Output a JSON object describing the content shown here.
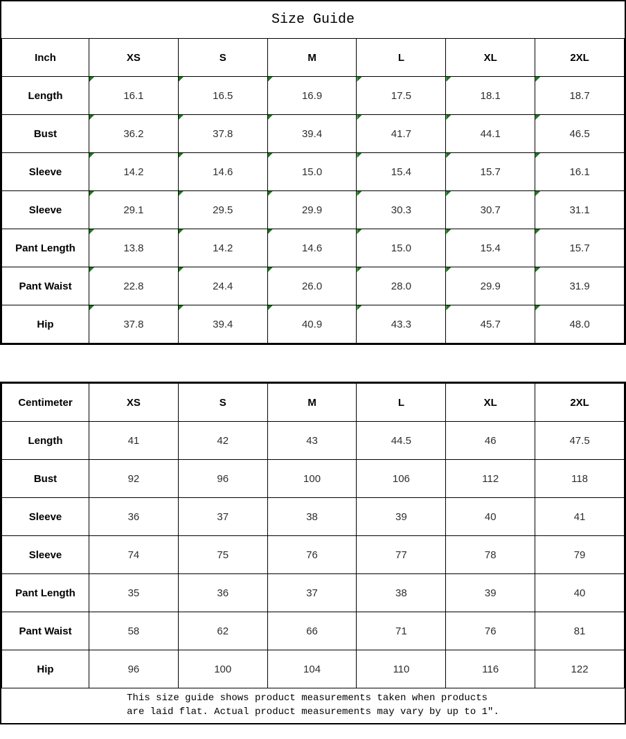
{
  "title": "Size Guide",
  "colors": {
    "border": "#000000",
    "marker_green": "#187a18",
    "value_text": "#2e2e2e"
  },
  "tables": [
    {
      "unit_label": "Inch",
      "sizes": [
        "XS",
        "S",
        "M",
        "L",
        "XL",
        "2XL"
      ],
      "has_cell_markers": true,
      "rows": [
        {
          "label": "Length",
          "values": [
            "16.1",
            "16.5",
            "16.9",
            "17.5",
            "18.1",
            "18.7"
          ]
        },
        {
          "label": "Bust",
          "values": [
            "36.2",
            "37.8",
            "39.4",
            "41.7",
            "44.1",
            "46.5"
          ]
        },
        {
          "label": "Sleeve",
          "values": [
            "14.2",
            "14.6",
            "15.0",
            "15.4",
            "15.7",
            "16.1"
          ]
        },
        {
          "label": "Sleeve",
          "values": [
            "29.1",
            "29.5",
            "29.9",
            "30.3",
            "30.7",
            "31.1"
          ]
        },
        {
          "label": "Pant Length",
          "values": [
            "13.8",
            "14.2",
            "14.6",
            "15.0",
            "15.4",
            "15.7"
          ]
        },
        {
          "label": "Pant Waist",
          "values": [
            "22.8",
            "24.4",
            "26.0",
            "28.0",
            "29.9",
            "31.9"
          ]
        },
        {
          "label": "Hip",
          "values": [
            "37.8",
            "39.4",
            "40.9",
            "43.3",
            "45.7",
            "48.0"
          ]
        }
      ]
    },
    {
      "unit_label": "Centimeter",
      "sizes": [
        "XS",
        "S",
        "M",
        "L",
        "XL",
        "2XL"
      ],
      "has_cell_markers": false,
      "rows": [
        {
          "label": "Length",
          "values": [
            "41",
            "42",
            "43",
            "44.5",
            "46",
            "47.5"
          ]
        },
        {
          "label": "Bust",
          "values": [
            "92",
            "96",
            "100",
            "106",
            "112",
            "118"
          ]
        },
        {
          "label": "Sleeve",
          "values": [
            "36",
            "37",
            "38",
            "39",
            "40",
            "41"
          ]
        },
        {
          "label": "Sleeve",
          "values": [
            "74",
            "75",
            "76",
            "77",
            "78",
            "79"
          ]
        },
        {
          "label": "Pant Length",
          "values": [
            "35",
            "36",
            "37",
            "38",
            "39",
            "40"
          ]
        },
        {
          "label": "Pant Waist",
          "values": [
            "58",
            "62",
            "66",
            "71",
            "76",
            "81"
          ]
        },
        {
          "label": "Hip",
          "values": [
            "96",
            "100",
            "104",
            "110",
            "116",
            "122"
          ]
        }
      ]
    }
  ],
  "footer": {
    "line1": "This size guide shows product measurements taken when products",
    "line2": "are laid flat. Actual product measurements may vary by up to 1″."
  }
}
